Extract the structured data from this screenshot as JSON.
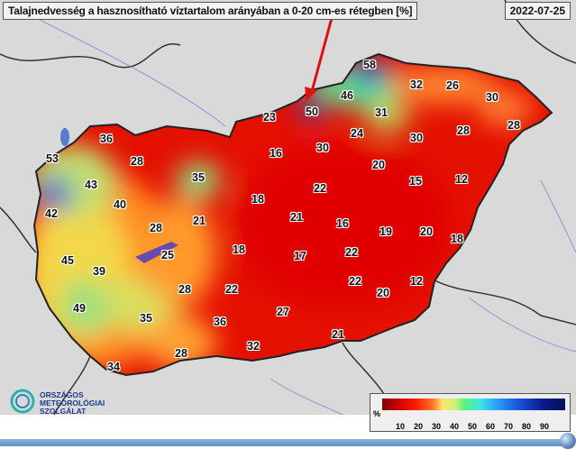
{
  "header": {
    "title": "Talajnedvesség a hasznosítható víztartalom arányában a 0-20 cm-es rétegben [%]",
    "date": "2022-07-25"
  },
  "map": {
    "region": "Hungary",
    "values": [
      58,
      32,
      26,
      30,
      46,
      50,
      23,
      31,
      28,
      36,
      24,
      30,
      28,
      53,
      16,
      30,
      28,
      20,
      43,
      35,
      15,
      12,
      22,
      18,
      40,
      42,
      21,
      21,
      16,
      22,
      19,
      20,
      18,
      28,
      45,
      39,
      25,
      18,
      17,
      28,
      22,
      22,
      12,
      20,
      49,
      35,
      36,
      27,
      21,
      32,
      28,
      34
    ],
    "colors": {
      "dry": "#e00000",
      "mid": "#ffd24a",
      "wet": "#1a3fc0",
      "land_outside": "#d9d9d9"
    },
    "pointer_arrow_color": "#e01010"
  },
  "legend": {
    "unit": "%",
    "ticks": [
      "10",
      "20",
      "30",
      "40",
      "50",
      "60",
      "70",
      "80",
      "90"
    ],
    "colors": [
      "#7a0000",
      "#ff1a00",
      "#ffe570",
      "#59f07a",
      "#3fe8e0",
      "#1a50d8",
      "#06105a"
    ]
  },
  "logo": {
    "line1": "ORSZÁGOS",
    "line2": "METEOROLÓGIAI",
    "line3": "SZOLGÁLAT"
  }
}
